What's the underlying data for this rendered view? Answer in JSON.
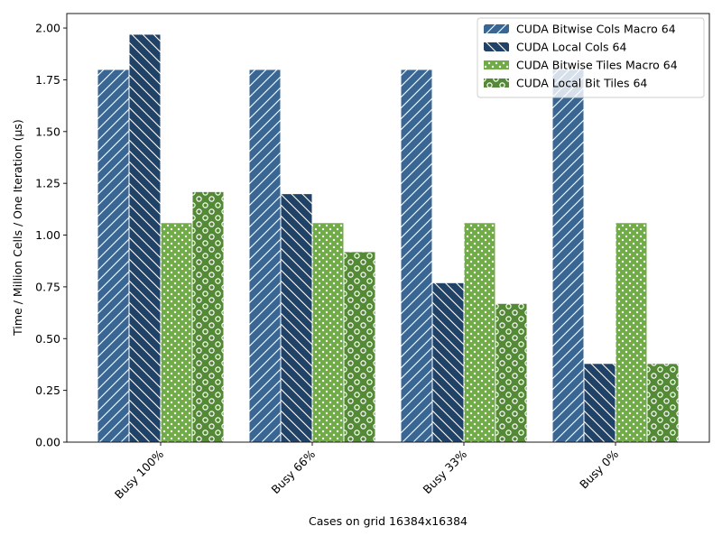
{
  "chart_data": {
    "type": "bar",
    "title": "",
    "xlabel": "Cases on grid 16384x16384",
    "ylabel": "Time / Million Cells / One Iteration (µs)",
    "categories": [
      "Busy 100%",
      "Busy 66%",
      "Busy 33%",
      "Busy 0%"
    ],
    "ylim": [
      0,
      2.07
    ],
    "yticks": [
      "0.00",
      "0.25",
      "0.50",
      "0.75",
      "1.00",
      "1.25",
      "1.50",
      "1.75",
      "2.00"
    ],
    "ytick_values": [
      0,
      0.25,
      0.5,
      0.75,
      1.0,
      1.25,
      1.5,
      1.75,
      2.0
    ],
    "grid": false,
    "legend_position": "top-right",
    "series": [
      {
        "name": "CUDA Bitwise Cols Macro 64",
        "color": "#3a6694",
        "hatch": "forward-slash",
        "values": [
          1.8,
          1.8,
          1.8,
          1.8
        ]
      },
      {
        "name": "CUDA Local Cols 64",
        "color": "#1f4266",
        "hatch": "back-slash",
        "values": [
          1.97,
          1.2,
          0.77,
          0.38
        ]
      },
      {
        "name": "CUDA Bitwise Tiles Macro 64",
        "color": "#6fac46",
        "hatch": "dots",
        "values": [
          1.06,
          1.06,
          1.06,
          1.06
        ]
      },
      {
        "name": "CUDA Local Bit Tiles 64",
        "color": "#548a35",
        "hatch": "circles",
        "values": [
          1.21,
          0.92,
          0.67,
          0.38
        ]
      }
    ]
  }
}
